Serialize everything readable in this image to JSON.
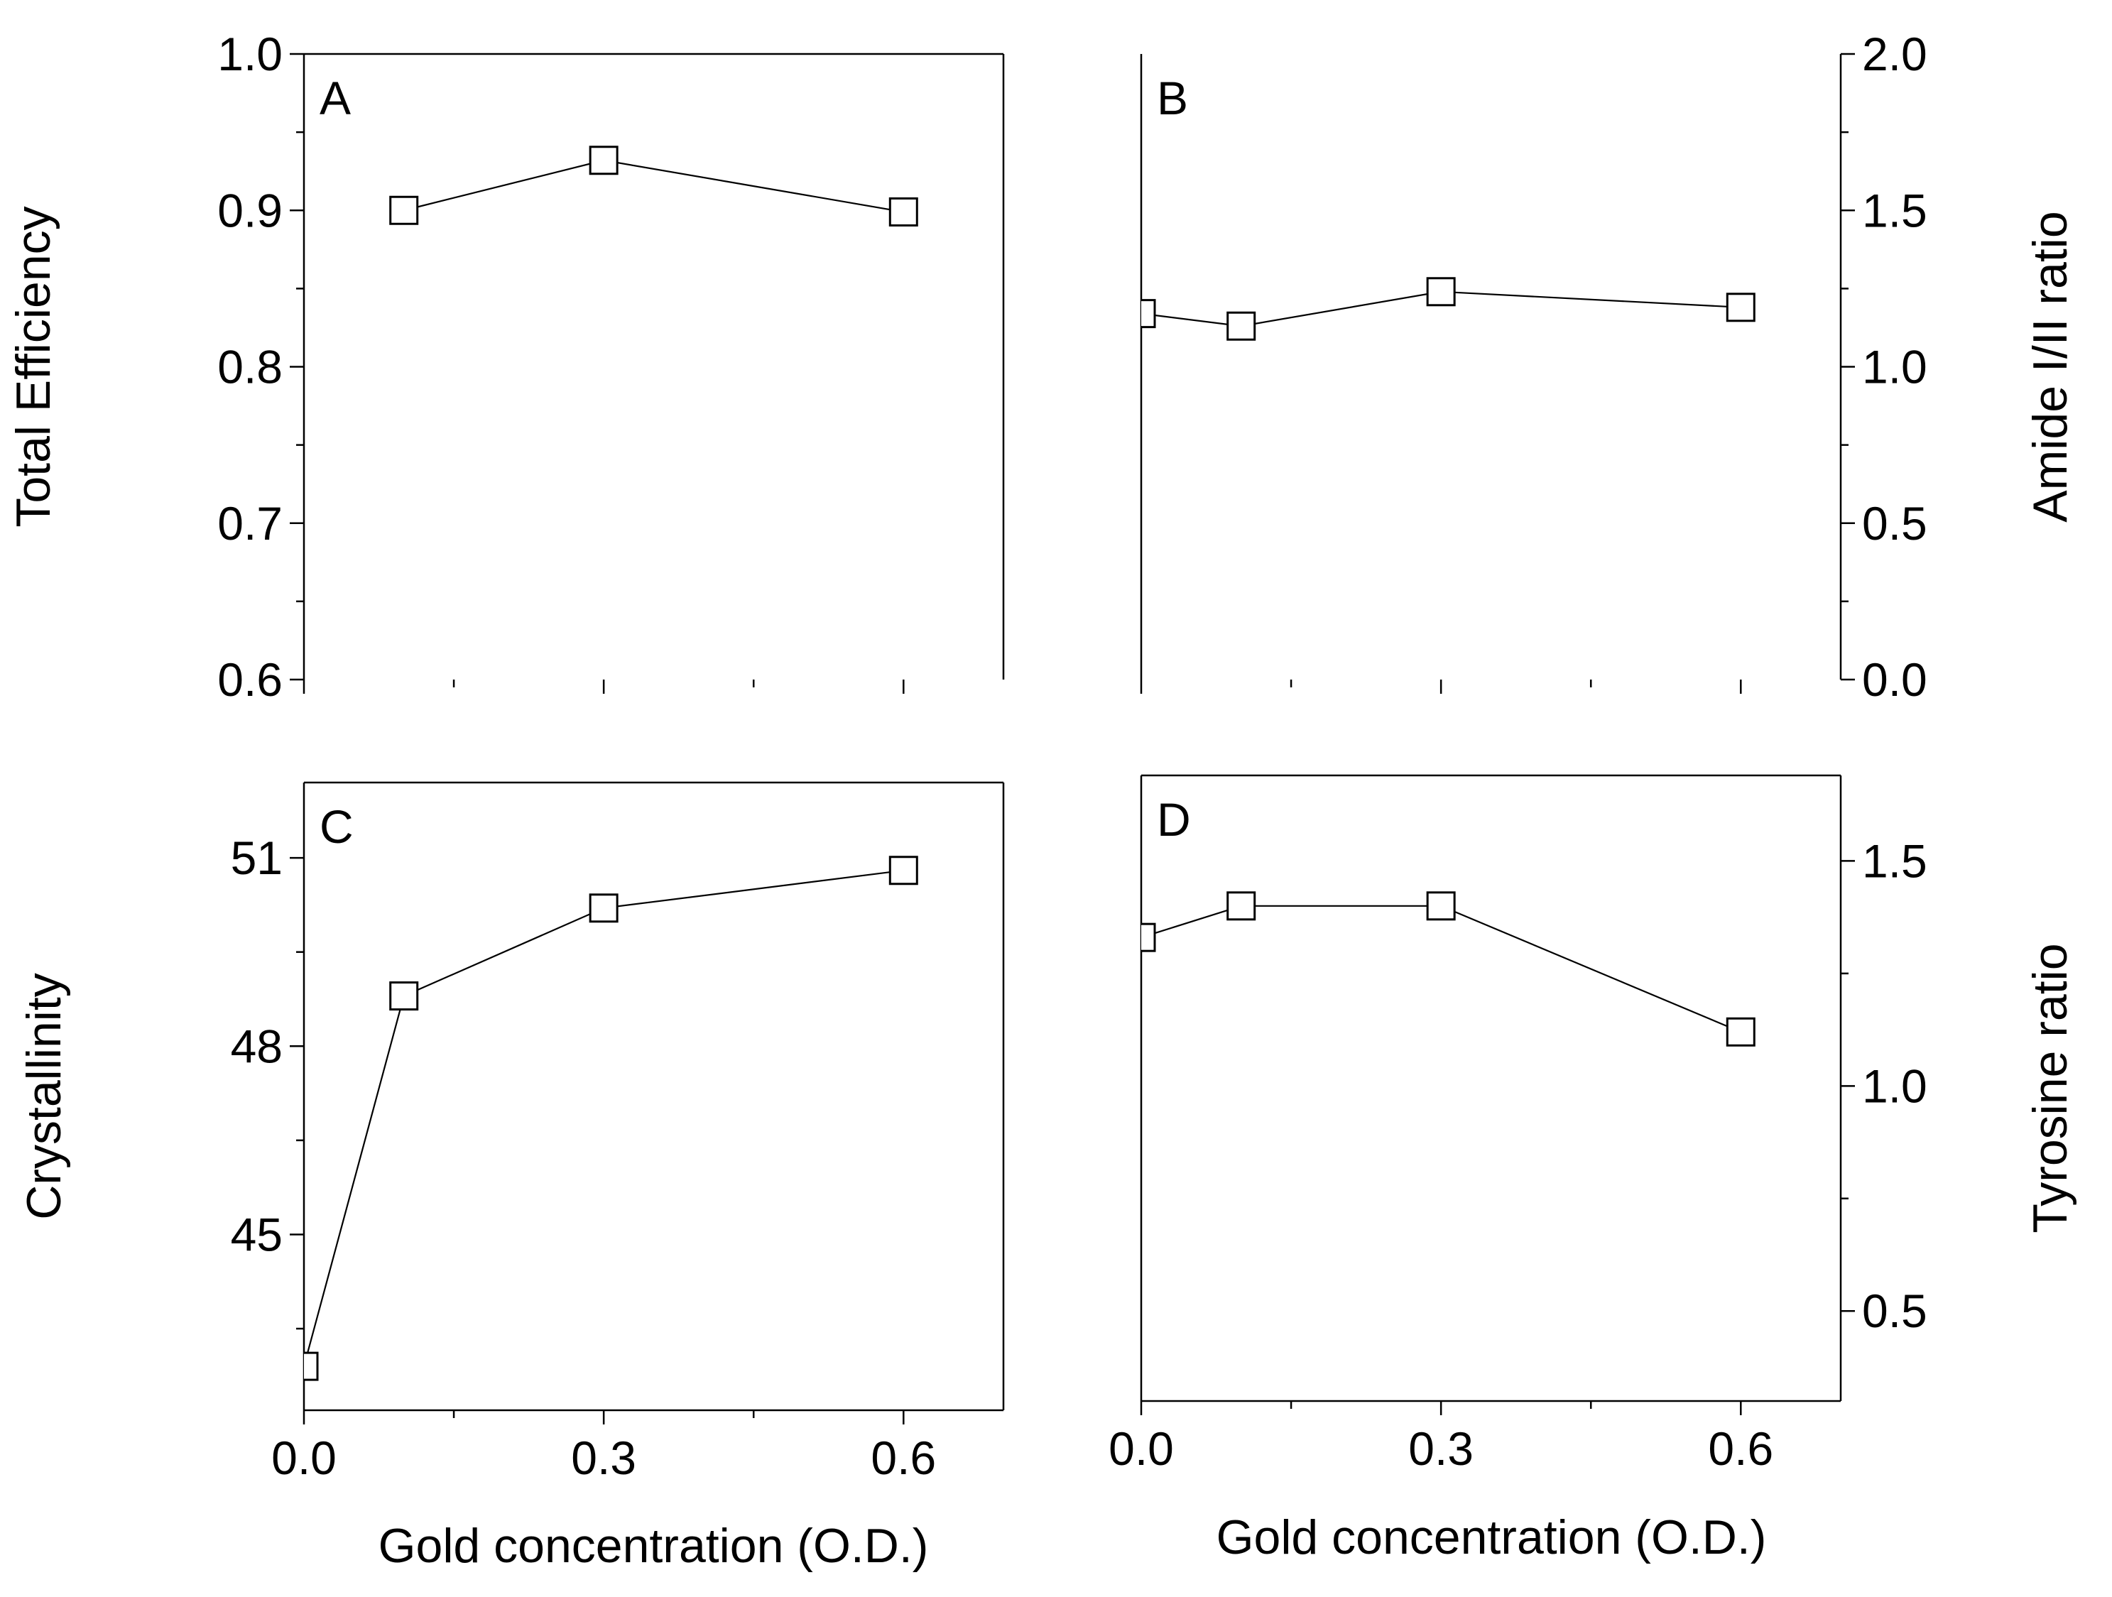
{
  "chart_data": [
    {
      "id": "A",
      "type": "line",
      "letter": "A",
      "x": [
        0.1,
        0.3,
        0.6
      ],
      "values": [
        0.9,
        0.932,
        0.899
      ],
      "ylabel": "Total Efficiency",
      "xlim": [
        0.0,
        0.7
      ],
      "ylim": [
        0.6,
        1.0
      ],
      "xticks": [
        0.0,
        0.3,
        0.6
      ],
      "yticks": [
        0.6,
        0.7,
        0.8,
        0.9,
        1.0
      ],
      "yticks_side": "left",
      "ytick_labels": [
        "0.6",
        "0.7",
        "0.8",
        "0.9",
        "1.0"
      ],
      "marker": "open-square"
    },
    {
      "id": "B",
      "type": "line",
      "letter": "B",
      "x": [
        0.0,
        0.1,
        0.3,
        0.6
      ],
      "values": [
        1.17,
        1.13,
        1.24,
        1.19
      ],
      "ylabel": "Amide I/II ratio",
      "xlim": [
        0.0,
        0.7
      ],
      "ylim": [
        0.0,
        2.0
      ],
      "xticks": [
        0.0,
        0.3,
        0.6
      ],
      "yticks": [
        0.0,
        0.5,
        1.0,
        1.5,
        2.0
      ],
      "yticks_side": "right",
      "ytick_labels": [
        "0.0",
        "0.5",
        "1.0",
        "1.5",
        "2.0"
      ],
      "marker": "open-square"
    },
    {
      "id": "C",
      "type": "line",
      "letter": "C",
      "x": [
        0.0,
        0.1,
        0.3,
        0.6
      ],
      "values": [
        42.9,
        48.8,
        50.2,
        50.8
      ],
      "ylabel": "Crystallinity",
      "xlabel": "Gold concentration (O.D.)",
      "xlim": [
        0.0,
        0.7
      ],
      "ylim": [
        42.2,
        52.2
      ],
      "xticks": [
        0.0,
        0.3,
        0.6
      ],
      "xtick_labels": [
        "0.0",
        "0.3",
        "0.6"
      ],
      "yticks": [
        45,
        48,
        51
      ],
      "yticks_side": "left",
      "ytick_labels": [
        "45",
        "48",
        "51"
      ],
      "marker": "open-square"
    },
    {
      "id": "D",
      "type": "line",
      "letter": "D",
      "x": [
        0.0,
        0.1,
        0.3,
        0.6
      ],
      "values": [
        1.33,
        1.4,
        1.4,
        1.12
      ],
      "ylabel": "Tyrosine ratio",
      "xlabel": "Gold concentration (O.D.)",
      "xlim": [
        0.0,
        0.7
      ],
      "ylim": [
        0.3,
        1.69
      ],
      "xticks": [
        0.0,
        0.3,
        0.6
      ],
      "xtick_labels": [
        "0.0",
        "0.3",
        "0.6"
      ],
      "yticks": [
        0.5,
        1.0,
        1.5
      ],
      "yticks_side": "right",
      "ytick_labels": [
        "0.5",
        "1.0",
        "1.5"
      ],
      "marker": "open-square"
    }
  ]
}
